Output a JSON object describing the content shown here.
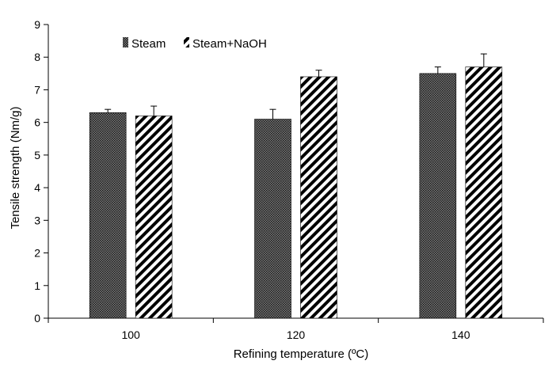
{
  "chart_data": {
    "type": "bar",
    "categories": [
      "100",
      "120",
      "140"
    ],
    "series": [
      {
        "name": "Steam",
        "values": [
          6.3,
          6.1,
          7.5
        ],
        "errors": [
          0.1,
          0.3,
          0.2
        ],
        "pattern": "dotted-dark"
      },
      {
        "name": "Steam+NaOH",
        "values": [
          6.2,
          7.4,
          7.7
        ],
        "errors": [
          0.3,
          0.2,
          0.4
        ],
        "pattern": "diagonal-stripes"
      }
    ],
    "title": "",
    "xlabel": "Refining temperature (ºC)",
    "ylabel": "Tensile strength (Nm/g)",
    "ylim": [
      0,
      9
    ],
    "yticks": [
      "0",
      "1",
      "2",
      "3",
      "4",
      "5",
      "6",
      "7",
      "8",
      "9"
    ],
    "legend_position": "top-left",
    "grid": false
  }
}
